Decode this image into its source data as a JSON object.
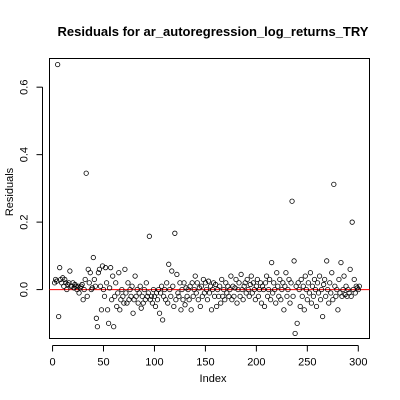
{
  "chart_data": {
    "type": "scatter",
    "title": "Residuals for ar_autoregression_log_returns_TRY",
    "xlabel": "Index",
    "ylabel": "Residuals",
    "xlim": [
      -3,
      311
    ],
    "ylim": [
      -0.145,
      0.685
    ],
    "x_ticks": [
      0,
      50,
      100,
      150,
      200,
      250,
      300
    ],
    "y_ticks": [
      0.0,
      0.2,
      0.4,
      0.6
    ],
    "y_tick_labels": [
      "0.0",
      "0.2",
      "0.4",
      "0.6"
    ],
    "reference_line": {
      "y": 0,
      "color": "#ff0000"
    },
    "grid": false,
    "legend": "none",
    "point_color": "#000000",
    "points": [
      [
        2,
        0.02
      ],
      [
        3,
        0.03
      ],
      [
        4,
        0.025
      ],
      [
        5,
        0.667
      ],
      [
        6,
        -0.08
      ],
      [
        7,
        0.065
      ],
      [
        8,
        0.03
      ],
      [
        9,
        0.02
      ],
      [
        10,
        0.035
      ],
      [
        11,
        0.01
      ],
      [
        12,
        0.03
      ],
      [
        13,
        0.02
      ],
      [
        14,
        0.0
      ],
      [
        15,
        0.015
      ],
      [
        16,
        0.02
      ],
      [
        17,
        0.055
      ],
      [
        18,
        0.01
      ],
      [
        19,
        0.01
      ],
      [
        20,
        0.02
      ],
      [
        21,
        0.005
      ],
      [
        22,
        0.015
      ],
      [
        23,
        0.01
      ],
      [
        24,
        0.0
      ],
      [
        25,
        0.01
      ],
      [
        26,
        -0.01
      ],
      [
        27,
        0.005
      ],
      [
        28,
        0.01
      ],
      [
        29,
        0.015
      ],
      [
        30,
        -0.03
      ],
      [
        31,
        0.0
      ],
      [
        32,
        0.03
      ],
      [
        33,
        0.345
      ],
      [
        34,
        -0.02
      ],
      [
        35,
        0.06
      ],
      [
        36,
        0.02
      ],
      [
        37,
        0.05
      ],
      [
        38,
        0.0
      ],
      [
        39,
        0.005
      ],
      [
        40,
        0.095
      ],
      [
        41,
        0.03
      ],
      [
        42,
        0.01
      ],
      [
        43,
        -0.085
      ],
      [
        44,
        -0.11
      ],
      [
        45,
        0.05
      ],
      [
        46,
        0.06
      ],
      [
        47,
        0.01
      ],
      [
        48,
        -0.06
      ],
      [
        49,
        0.07
      ],
      [
        50,
        0.0
      ],
      [
        51,
        -0.02
      ],
      [
        52,
        0.065
      ],
      [
        53,
        0.02
      ],
      [
        54,
        -0.06
      ],
      [
        55,
        -0.1
      ],
      [
        56,
        0.005
      ],
      [
        57,
        0.065
      ],
      [
        58,
        -0.03
      ],
      [
        59,
        0.04
      ],
      [
        60,
        -0.11
      ],
      [
        61,
        -0.02
      ],
      [
        62,
        0.02
      ],
      [
        63,
        -0.05
      ],
      [
        64,
        -0.01
      ],
      [
        65,
        0.05
      ],
      [
        66,
        -0.06
      ],
      [
        67,
        -0.03
      ],
      [
        68,
        0.0
      ],
      [
        69,
        -0.02
      ],
      [
        70,
        -0.04
      ],
      [
        71,
        0.06
      ],
      [
        72,
        -0.01
      ],
      [
        73,
        -0.04
      ],
      [
        74,
        0.02
      ],
      [
        75,
        -0.03
      ],
      [
        76,
        0.0
      ],
      [
        77,
        -0.02
      ],
      [
        78,
        0.01
      ],
      [
        79,
        -0.07
      ],
      [
        80,
        -0.03
      ],
      [
        81,
        0.04
      ],
      [
        82,
        -0.02
      ],
      [
        83,
        0.0
      ],
      [
        84,
        -0.04
      ],
      [
        85,
        -0.01
      ],
      [
        86,
        0.01
      ],
      [
        87,
        -0.055
      ],
      [
        88,
        -0.02
      ],
      [
        89,
        -0.04
      ],
      [
        90,
        0.0
      ],
      [
        91,
        -0.03
      ],
      [
        92,
        0.02
      ],
      [
        93,
        -0.02
      ],
      [
        94,
        -0.01
      ],
      [
        95,
        0.158
      ],
      [
        96,
        -0.03
      ],
      [
        97,
        -0.02
      ],
      [
        98,
        -0.04
      ],
      [
        99,
        0.0
      ],
      [
        100,
        -0.02
      ],
      [
        101,
        -0.05
      ],
      [
        102,
        -0.01
      ],
      [
        103,
        -0.03
      ],
      [
        104,
        0.0
      ],
      [
        105,
        -0.07
      ],
      [
        106,
        -0.01
      ],
      [
        107,
        0.01
      ],
      [
        108,
        -0.09
      ],
      [
        109,
        -0.02
      ],
      [
        110,
        0.0
      ],
      [
        111,
        -0.03
      ],
      [
        112,
        0.02
      ],
      [
        113,
        -0.04
      ],
      [
        114,
        0.075
      ],
      [
        115,
        0.0
      ],
      [
        116,
        -0.02
      ],
      [
        117,
        0.055
      ],
      [
        118,
        0.01
      ],
      [
        119,
        -0.05
      ],
      [
        120,
        0.167
      ],
      [
        121,
        -0.03
      ],
      [
        122,
        0.045
      ],
      [
        123,
        -0.01
      ],
      [
        124,
        -0.02
      ],
      [
        125,
        0.02
      ],
      [
        126,
        -0.06
      ],
      [
        127,
        0.0
      ],
      [
        128,
        -0.03
      ],
      [
        129,
        0.02
      ],
      [
        130,
        -0.045
      ],
      [
        131,
        0.005
      ],
      [
        132,
        -0.02
      ],
      [
        133,
        0.0
      ],
      [
        134,
        -0.03
      ],
      [
        135,
        0.01
      ],
      [
        136,
        -0.06
      ],
      [
        137,
        0.02
      ],
      [
        138,
        -0.02
      ],
      [
        139,
        0.0
      ],
      [
        140,
        0.04
      ],
      [
        141,
        -0.01
      ],
      [
        142,
        0.02
      ],
      [
        143,
        -0.03
      ],
      [
        144,
        0.005
      ],
      [
        145,
        -0.05
      ],
      [
        146,
        0.01
      ],
      [
        147,
        -0.02
      ],
      [
        148,
        0.03
      ],
      [
        149,
        -0.01
      ],
      [
        150,
        0.02
      ],
      [
        151,
        0.0
      ],
      [
        152,
        -0.03
      ],
      [
        153,
        0.025
      ],
      [
        154,
        -0.01
      ],
      [
        155,
        0.01
      ],
      [
        156,
        -0.06
      ],
      [
        157,
        0.0
      ],
      [
        158,
        0.02
      ],
      [
        159,
        -0.02
      ],
      [
        160,
        0.015
      ],
      [
        161,
        -0.05
      ],
      [
        162,
        0.0
      ],
      [
        163,
        -0.02
      ],
      [
        164,
        0.01
      ],
      [
        165,
        -0.04
      ],
      [
        166,
        0.03
      ],
      [
        167,
        -0.02
      ],
      [
        168,
        0.0
      ],
      [
        169,
        -0.03
      ],
      [
        170,
        0.02
      ],
      [
        171,
        -0.01
      ],
      [
        172,
        0.01
      ],
      [
        173,
        -0.02
      ],
      [
        174,
        0.0
      ],
      [
        175,
        0.04
      ],
      [
        176,
        -0.03
      ],
      [
        177,
        0.01
      ],
      [
        178,
        -0.02
      ],
      [
        179,
        0.005
      ],
      [
        180,
        0.03
      ],
      [
        181,
        -0.04
      ],
      [
        182,
        0.0
      ],
      [
        183,
        0.02
      ],
      [
        184,
        -0.02
      ],
      [
        185,
        0.045
      ],
      [
        186,
        0.0
      ],
      [
        187,
        -0.03
      ],
      [
        188,
        0.01
      ],
      [
        189,
        0.02
      ],
      [
        190,
        -0.01
      ],
      [
        191,
        0.03
      ],
      [
        192,
        0.0
      ],
      [
        193,
        -0.02
      ],
      [
        194,
        0.015
      ],
      [
        195,
        0.04
      ],
      [
        196,
        -0.01
      ],
      [
        197,
        0.02
      ],
      [
        198,
        0.0
      ],
      [
        199,
        -0.03
      ],
      [
        200,
        0.01
      ],
      [
        201,
        0.03
      ],
      [
        202,
        -0.02
      ],
      [
        203,
        0.0
      ],
      [
        204,
        0.02
      ],
      [
        205,
        -0.04
      ],
      [
        206,
        0.01
      ],
      [
        207,
        0.0
      ],
      [
        208,
        -0.05
      ],
      [
        209,
        0.02
      ],
      [
        210,
        0.04
      ],
      [
        211,
        -0.02
      ],
      [
        212,
        0.0
      ],
      [
        213,
        0.03
      ],
      [
        214,
        -0.03
      ],
      [
        215,
        0.08
      ],
      [
        216,
        -0.01
      ],
      [
        217,
        0.02
      ],
      [
        218,
        0.0
      ],
      [
        219,
        -0.04
      ],
      [
        220,
        0.05
      ],
      [
        221,
        0.01
      ],
      [
        222,
        -0.02
      ],
      [
        223,
        0.03
      ],
      [
        224,
        -0.03
      ],
      [
        225,
        0.0
      ],
      [
        226,
        0.02
      ],
      [
        227,
        -0.06
      ],
      [
        228,
        0.01
      ],
      [
        229,
        0.05
      ],
      [
        230,
        -0.02
      ],
      [
        231,
        0.0
      ],
      [
        232,
        0.03
      ],
      [
        233,
        -0.04
      ],
      [
        234,
        0.02
      ],
      [
        235,
        0.262
      ],
      [
        236,
        -0.02
      ],
      [
        237,
        0.085
      ],
      [
        238,
        -0.13
      ],
      [
        239,
        0.01
      ],
      [
        240,
        -0.1
      ],
      [
        241,
        0.02
      ],
      [
        242,
        0.0
      ],
      [
        243,
        -0.05
      ],
      [
        244,
        0.03
      ],
      [
        245,
        -0.02
      ],
      [
        246,
        0.01
      ],
      [
        247,
        -0.06
      ],
      [
        248,
        0.04
      ],
      [
        249,
        0.0
      ],
      [
        250,
        -0.03
      ],
      [
        251,
        0.02
      ],
      [
        252,
        -0.01
      ],
      [
        253,
        0.05
      ],
      [
        254,
        -0.04
      ],
      [
        255,
        0.01
      ],
      [
        256,
        -0.02
      ],
      [
        257,
        0.03
      ],
      [
        258,
        0.0
      ],
      [
        259,
        -0.05
      ],
      [
        260,
        0.02
      ],
      [
        261,
        -0.01
      ],
      [
        262,
        0.04
      ],
      [
        263,
        -0.03
      ],
      [
        264,
        0.0
      ],
      [
        265,
        -0.08
      ],
      [
        266,
        0.015
      ],
      [
        267,
        0.03
      ],
      [
        268,
        -0.02
      ],
      [
        269,
        0.085
      ],
      [
        270,
        0.0
      ],
      [
        271,
        -0.04
      ],
      [
        272,
        0.02
      ],
      [
        273,
        -0.01
      ],
      [
        274,
        0.05
      ],
      [
        275,
        -0.03
      ],
      [
        276,
        0.312
      ],
      [
        277,
        0.01
      ],
      [
        278,
        -0.02
      ],
      [
        279,
        0.0
      ],
      [
        280,
        -0.06
      ],
      [
        281,
        0.03
      ],
      [
        282,
        -0.01
      ],
      [
        283,
        0.08
      ],
      [
        284,
        -0.02
      ],
      [
        285,
        0.0
      ],
      [
        286,
        0.04
      ],
      [
        287,
        -0.015
      ],
      [
        288,
        0.01
      ],
      [
        289,
        -0.02
      ],
      [
        290,
        0.0
      ],
      [
        291,
        -0.01
      ],
      [
        292,
        0.06
      ],
      [
        293,
        -0.02
      ],
      [
        294,
        0.2
      ],
      [
        295,
        0.0
      ],
      [
        296,
        0.03
      ],
      [
        297,
        -0.01
      ],
      [
        298,
        0.01
      ],
      [
        299,
        0.005
      ],
      [
        300,
        0.0
      ],
      [
        301,
        0.01
      ]
    ]
  }
}
